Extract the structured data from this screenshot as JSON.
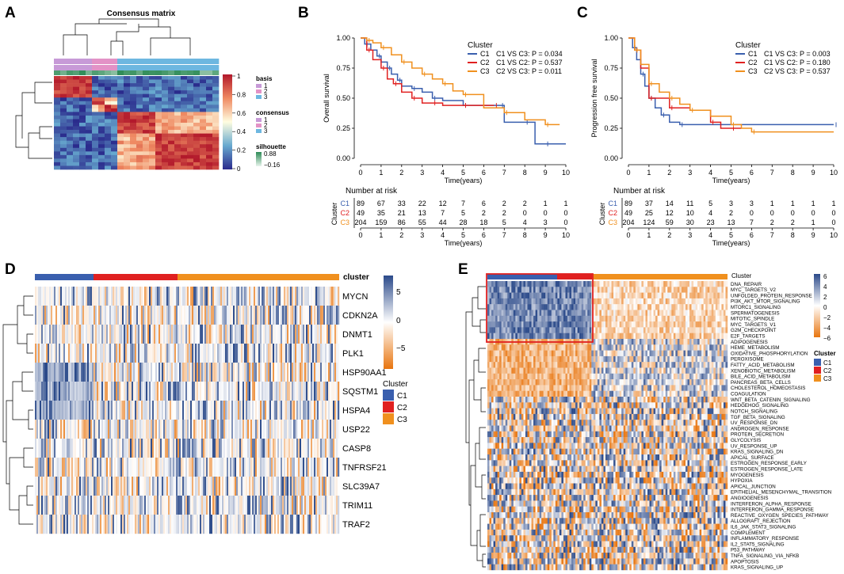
{
  "panels": {
    "A": "A",
    "B": "B",
    "C": "C",
    "D": "D",
    "E": "E"
  },
  "colors": {
    "C1": "#3a5fae",
    "C2": "#e02020",
    "C3": "#f0901e",
    "basis1": "#c79ad7",
    "basis2": "#e392c6",
    "basis3": "#6db7e0",
    "cons1": "#c79ad7",
    "cons2": "#e392c6",
    "cons3": "#6db7e0",
    "sil_hi": "#2e8b57",
    "sil_lo": "#d6ece0",
    "heat_lo": "#2a2a8c",
    "heat_mid": "#fffde0",
    "heat_hi": "#b2182b",
    "exp_lo": "#e8750f",
    "exp_mid": "#ffffff",
    "exp_hi": "#2b4a8a"
  },
  "consensus": {
    "title": "Consensus matrix",
    "scale_ticks": [
      "1",
      "0.8",
      "0.6",
      "0.4",
      "0.2",
      "0"
    ],
    "legend_basis_title": "basis",
    "legend_basis": [
      "1",
      "2",
      "3"
    ],
    "legend_consensus_title": "consensus",
    "legend_consensus": [
      "1",
      "2",
      "3"
    ],
    "legend_silhouette_title": "silhouette",
    "legend_silhouette": [
      "0.88",
      "−0.16"
    ]
  },
  "chart_data": [
    {
      "type": "line",
      "title": "Overall survival",
      "xlabel": "Time(years)",
      "ylabel": "Overall survival",
      "xlim": [
        0,
        10
      ],
      "ylim": [
        0,
        1
      ],
      "xticks": [
        "0",
        "1",
        "2",
        "3",
        "4",
        "5",
        "6",
        "7",
        "8",
        "9",
        "10"
      ],
      "yticks": [
        "0.00",
        "0.25",
        "0.50",
        "0.75",
        "1.00"
      ],
      "legend_title": "Cluster",
      "legend": [
        "C1",
        "C2",
        "C3"
      ],
      "pvalues": [
        "C1 VS C3: P = 0.034",
        "C1 VS C2: P = 0.537",
        "C2 VS C3: P = 0.011"
      ],
      "series": [
        {
          "name": "C1",
          "x": [
            0,
            0.2,
            0.5,
            0.8,
            1.0,
            1.3,
            1.5,
            1.8,
            2.0,
            2.5,
            3.0,
            3.5,
            4.0,
            5.0,
            6.0,
            6.8,
            7.0,
            8.0,
            8.5,
            9.0,
            10
          ],
          "y": [
            1,
            0.95,
            0.9,
            0.85,
            0.8,
            0.75,
            0.7,
            0.65,
            0.6,
            0.58,
            0.55,
            0.5,
            0.48,
            0.44,
            0.44,
            0.44,
            0.3,
            0.3,
            0.12,
            0.12,
            0.12
          ]
        },
        {
          "name": "C2",
          "x": [
            0,
            0.3,
            0.6,
            1.0,
            1.3,
            1.6,
            2.0,
            2.5,
            3.0,
            3.5,
            4.0,
            5.0,
            6.0,
            6.5
          ],
          "y": [
            1,
            0.9,
            0.82,
            0.75,
            0.66,
            0.62,
            0.55,
            0.5,
            0.46,
            0.46,
            0.44,
            0.44,
            0.44,
            0.44
          ]
        },
        {
          "name": "C3",
          "x": [
            0,
            0.3,
            0.6,
            1.0,
            1.5,
            2.0,
            2.5,
            3.0,
            3.5,
            4.0,
            4.5,
            5.0,
            6.0,
            7.0,
            8.0,
            9.0,
            9.7
          ],
          "y": [
            1,
            0.98,
            0.96,
            0.92,
            0.86,
            0.8,
            0.75,
            0.7,
            0.66,
            0.62,
            0.56,
            0.53,
            0.42,
            0.38,
            0.32,
            0.28,
            0.28
          ]
        }
      ],
      "risk_title": "Number at risk",
      "risk_xlabel": "Time(years)",
      "risk_ylabel": "Cluster",
      "risk_rows": [
        {
          "name": "C1",
          "values": [
            "89",
            "67",
            "33",
            "22",
            "12",
            "7",
            "6",
            "2",
            "2",
            "1",
            "1"
          ]
        },
        {
          "name": "C2",
          "values": [
            "49",
            "35",
            "21",
            "13",
            "7",
            "5",
            "2",
            "2",
            "0",
            "0",
            "0"
          ]
        },
        {
          "name": "C3",
          "values": [
            "204",
            "159",
            "86",
            "55",
            "44",
            "28",
            "18",
            "5",
            "4",
            "3",
            "0"
          ]
        }
      ]
    },
    {
      "type": "line",
      "title": "Progression free survival",
      "xlabel": "Time(years)",
      "ylabel": "Progression free survival",
      "xlim": [
        0,
        10
      ],
      "ylim": [
        0,
        1
      ],
      "xticks": [
        "0",
        "1",
        "2",
        "3",
        "4",
        "5",
        "6",
        "7",
        "8",
        "9",
        "10"
      ],
      "yticks": [
        "0.00",
        "0.25",
        "0.50",
        "0.75",
        "1.00"
      ],
      "legend_title": "Cluster",
      "legend": [
        "C1",
        "C2",
        "C3"
      ],
      "pvalues": [
        "C1 VS C3: P = 0.003",
        "C1 VS C2: P = 0.180",
        "C2 VS C3: P = 0.537"
      ],
      "series": [
        {
          "name": "C1",
          "x": [
            0,
            0.2,
            0.4,
            0.6,
            0.8,
            1.0,
            1.3,
            1.6,
            2.0,
            2.5,
            3.0,
            10
          ],
          "y": [
            1,
            0.92,
            0.82,
            0.7,
            0.6,
            0.5,
            0.42,
            0.36,
            0.3,
            0.28,
            0.28,
            0.28
          ]
        },
        {
          "name": "C2",
          "x": [
            0,
            0.3,
            0.6,
            1.0,
            1.5,
            2.0,
            3.0,
            4.0,
            4.5,
            5.0,
            5.5
          ],
          "y": [
            1,
            0.9,
            0.75,
            0.5,
            0.5,
            0.42,
            0.4,
            0.3,
            0.25,
            0.25,
            0.25
          ]
        },
        {
          "name": "C3",
          "x": [
            0,
            0.3,
            0.6,
            1.0,
            1.5,
            2.0,
            2.5,
            3.0,
            4.0,
            5.0,
            5.5,
            6.0,
            10
          ],
          "y": [
            1,
            0.9,
            0.78,
            0.62,
            0.55,
            0.5,
            0.45,
            0.4,
            0.35,
            0.28,
            0.25,
            0.22,
            0.22
          ]
        }
      ],
      "risk_title": "Number at risk",
      "risk_xlabel": "Time(years)",
      "risk_ylabel": "Cluster",
      "risk_rows": [
        {
          "name": "C1",
          "values": [
            "89",
            "37",
            "14",
            "11",
            "5",
            "3",
            "3",
            "1",
            "1",
            "1",
            "1"
          ]
        },
        {
          "name": "C2",
          "values": [
            "49",
            "25",
            "12",
            "10",
            "4",
            "2",
            "0",
            "0",
            "0",
            "0",
            "0"
          ]
        },
        {
          "name": "C3",
          "values": [
            "204",
            "124",
            "59",
            "30",
            "23",
            "13",
            "7",
            "2",
            "2",
            "1",
            "0"
          ]
        }
      ]
    },
    {
      "type": "heatmap",
      "title": "cluster",
      "rows": [
        "MYCN",
        "CDKN2A",
        "DNMT1",
        "PLK1",
        "HSP90AA1",
        "SQSTM1",
        "HSPA4",
        "USP22",
        "CASP8",
        "TNFRSF21",
        "SLC39A7",
        "TRIM11",
        "TRAF2"
      ],
      "scale_ticks": [
        "5",
        "0",
        "−5"
      ],
      "legend_title": "Cluster",
      "legend": [
        "C1",
        "C2",
        "C3"
      ]
    },
    {
      "type": "heatmap",
      "title": "Cluster",
      "rows": [
        "DNA_REPAIR",
        "MYC_TARGETS_V2",
        "UNFOLDED_PROTEIN_RESPONSE",
        "PI3K_AKT_MTOR_SIGNALING",
        "MTORC1_SIGNALING",
        "SPERMATOGENESIS",
        "MITOTIC_SPINDLE",
        "MYC_TARGETS_V1",
        "G2M_CHECKPOINT",
        "E2F_TARGETS",
        "ADIPOGENESIS",
        "HEME_METABOLISM",
        "OXIDATIVE_PHOSPHORYLATION",
        "PEROXISOME",
        "FATTY_ACID_METABOLISM",
        "XENOBIOTIC_METABOLISM",
        "BILE_ACID_METABOLISM",
        "PANCREAS_BETA_CELLS",
        "CHOLESTEROL_HOMEOSTASIS",
        "COAGULATION",
        "WNT_BETA_CATENIN_SIGNALING",
        "HEDGEHOG_SIGNALING",
        "NOTCH_SIGNALING",
        "TGF_BETA_SIGNALING",
        "UV_RESPONSE_DN",
        "ANDROGEN_RESPONSE",
        "PROTEIN_SECRETION",
        "GLYCOLYSIS",
        "UV_RESPONSE_UP",
        "KRAS_SIGNALING_DN",
        "APICAL_SURFACE",
        "ESTROGEN_RESPONSE_EARLY",
        "ESTROGEN_RESPONSE_LATE",
        "MYOGENESIS",
        "HYPOXIA",
        "APICAL_JUNCTION",
        "EPITHELIAL_MESENCHYMAL_TRANSITION",
        "ANGIOGENESIS",
        "INTERFERON_ALPHA_RESPONSE",
        "INTERFERON_GAMMA_RESPONSE",
        "REACTIVE_OXYGEN_SPECIES_PATHWAY",
        "ALLOGRAFT_REJECTION",
        "IL6_JAK_STAT3_SIGNALING",
        "COMPLEMENT",
        "INFLAMMATORY_RESPONSE",
        "IL2_STAT5_SIGNALING",
        "P53_PATHWAY",
        "TNFA_SIGNALING_VIA_NFKB",
        "APOPTOSIS",
        "KRAS_SIGNALING_UP"
      ],
      "scale_ticks": [
        "6",
        "4",
        "2",
        "0",
        "−2",
        "−4",
        "−6"
      ],
      "legend_title": "Cluster",
      "legend": [
        "C1",
        "C2",
        "C3"
      ]
    }
  ]
}
